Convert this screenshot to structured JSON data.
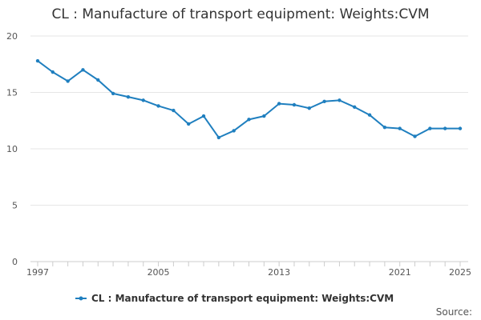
{
  "chart_data": {
    "type": "line",
    "title": "CL : Manufacture of transport equipment: Weights:CVM",
    "xlabel": "",
    "ylabel": "",
    "xlim": [
      1997,
      2025
    ],
    "ylim": [
      0,
      20
    ],
    "y_ticks": [
      0,
      5,
      10,
      15,
      20
    ],
    "x_ticks": [
      1997,
      2005,
      2013,
      2021,
      2025
    ],
    "grid": true,
    "legend_position": "bottom",
    "series": [
      {
        "name": "CL : Manufacture of transport equipment: Weights:CVM",
        "color": "#1f7fbf",
        "x": [
          1997,
          1998,
          1999,
          2000,
          2001,
          2002,
          2003,
          2004,
          2005,
          2006,
          2007,
          2008,
          2009,
          2010,
          2011,
          2012,
          2013,
          2014,
          2015,
          2016,
          2017,
          2018,
          2019,
          2020,
          2021,
          2022,
          2023,
          2024,
          2025
        ],
        "values": [
          17.8,
          16.8,
          16.0,
          17.0,
          16.1,
          14.9,
          14.6,
          14.3,
          13.8,
          13.4,
          12.2,
          12.9,
          11.0,
          11.6,
          12.6,
          12.9,
          14.0,
          13.9,
          13.6,
          14.2,
          14.3,
          13.7,
          13.0,
          11.9,
          11.8,
          11.1,
          11.8,
          11.8,
          11.8
        ]
      }
    ]
  },
  "source_label": "Source:"
}
